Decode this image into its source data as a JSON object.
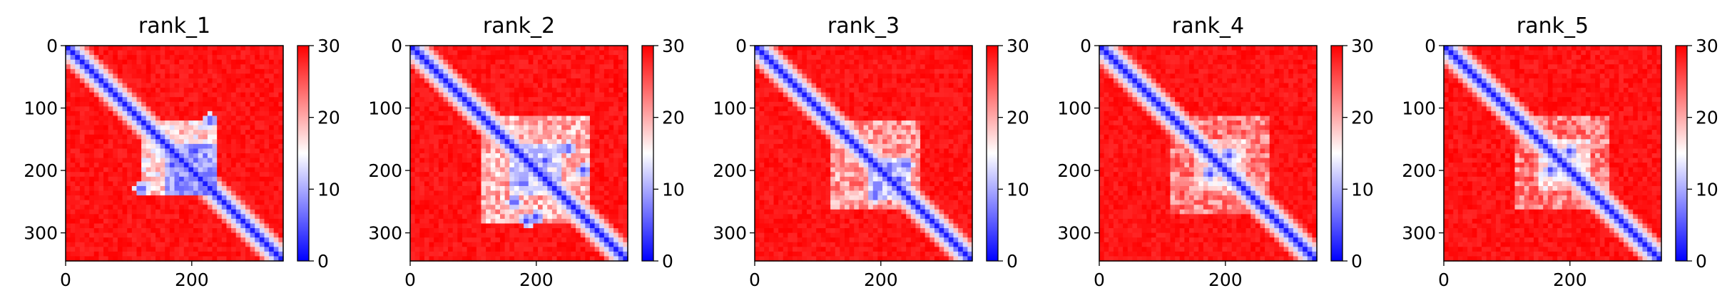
{
  "chart_data": [
    {
      "type": "heatmap",
      "title": "rank_1",
      "xlabel": "",
      "ylabel": "",
      "xlim": [
        0,
        345
      ],
      "ylim": [
        345,
        0
      ],
      "x_ticks": [
        "0",
        "200"
      ],
      "y_ticks": [
        "0",
        "100",
        "200",
        "300"
      ],
      "colorbar": {
        "range": [
          0,
          30
        ],
        "ticks": [
          "0",
          "10",
          "20",
          "30"
        ],
        "colormap": "bwr"
      },
      "features": {
        "diagonal": true,
        "block": {
          "start": 120,
          "end": 240,
          "level": 0.42
        },
        "subblock": {
          "start": 160,
          "end": 240,
          "level": 0.18
        },
        "spots": [
          [
            200,
            200
          ],
          [
            185,
            215
          ],
          [
            170,
            190
          ],
          [
            225,
            205
          ],
          [
            180,
            230
          ],
          [
            205,
            170
          ],
          [
            120,
            230
          ],
          [
            230,
            120
          ]
        ]
      }
    },
    {
      "type": "heatmap",
      "title": "rank_2",
      "xlabel": "",
      "ylabel": "",
      "xlim": [
        0,
        345
      ],
      "ylim": [
        345,
        0
      ],
      "x_ticks": [
        "0",
        "200"
      ],
      "y_ticks": [
        "0",
        "100",
        "200",
        "300"
      ],
      "colorbar": {
        "range": [
          0,
          30
        ],
        "ticks": [
          "0",
          "10",
          "20",
          "30"
        ],
        "colormap": "bwr"
      },
      "features": {
        "diagonal": true,
        "block": {
          "start": 110,
          "end": 285,
          "level": 0.5
        },
        "subblock": {
          "start": 160,
          "end": 240,
          "level": 0.3
        },
        "spots": [
          [
            200,
            200
          ],
          [
            180,
            220
          ],
          [
            215,
            185
          ],
          [
            165,
            250
          ],
          [
            250,
            165
          ],
          [
            275,
            200
          ],
          [
            200,
            275
          ],
          [
            185,
            280
          ]
        ]
      }
    },
    {
      "type": "heatmap",
      "title": "rank_3",
      "xlabel": "",
      "ylabel": "",
      "xlim": [
        0,
        345
      ],
      "ylim": [
        345,
        0
      ],
      "x_ticks": [
        "0",
        "200"
      ],
      "y_ticks": [
        "0",
        "100",
        "200",
        "300"
      ],
      "colorbar": {
        "range": [
          0,
          30
        ],
        "ticks": [
          "0",
          "10",
          "20",
          "30"
        ],
        "colormap": "bwr"
      },
      "features": {
        "diagonal": true,
        "block": {
          "start": 120,
          "end": 265,
          "level": 0.55
        },
        "subblock": {
          "start": 180,
          "end": 250,
          "level": 0.32
        },
        "spots": [
          [
            205,
            205
          ],
          [
            195,
            225
          ],
          [
            215,
            195
          ],
          [
            230,
            215
          ],
          [
            190,
            240
          ],
          [
            240,
            190
          ]
        ]
      }
    },
    {
      "type": "heatmap",
      "title": "rank_4",
      "xlabel": "",
      "ylabel": "",
      "xlim": [
        0,
        345
      ],
      "ylim": [
        345,
        0
      ],
      "x_ticks": [
        "0",
        "200"
      ],
      "y_ticks": [
        "0",
        "100",
        "200",
        "300"
      ],
      "colorbar": {
        "range": [
          0,
          30
        ],
        "ticks": [
          "0",
          "10",
          "20",
          "30"
        ],
        "colormap": "bwr"
      },
      "features": {
        "diagonal": true,
        "block": {
          "start": 110,
          "end": 270,
          "level": 0.6
        },
        "subblock": {
          "start": 150,
          "end": 230,
          "level": 0.45
        },
        "spots": [
          [
            160,
            160
          ],
          [
            185,
            185
          ],
          [
            200,
            200
          ],
          [
            230,
            230
          ],
          [
            175,
            205
          ],
          [
            205,
            175
          ]
        ]
      }
    },
    {
      "type": "heatmap",
      "title": "rank_5",
      "xlabel": "",
      "ylabel": "",
      "xlim": [
        0,
        345
      ],
      "ylim": [
        345,
        0
      ],
      "x_ticks": [
        "0",
        "200"
      ],
      "y_ticks": [
        "0",
        "100",
        "200",
        "300"
      ],
      "colorbar": {
        "range": [
          0,
          30
        ],
        "ticks": [
          "0",
          "10",
          "20",
          "30"
        ],
        "colormap": "bwr"
      },
      "features": {
        "diagonal": true,
        "block": {
          "start": 110,
          "end": 260,
          "level": 0.6
        },
        "subblock": {
          "start": 150,
          "end": 230,
          "level": 0.45
        },
        "spots": [
          [
            155,
            155
          ],
          [
            180,
            180
          ],
          [
            200,
            200
          ],
          [
            225,
            225
          ],
          [
            170,
            200
          ],
          [
            200,
            170
          ]
        ]
      }
    }
  ]
}
